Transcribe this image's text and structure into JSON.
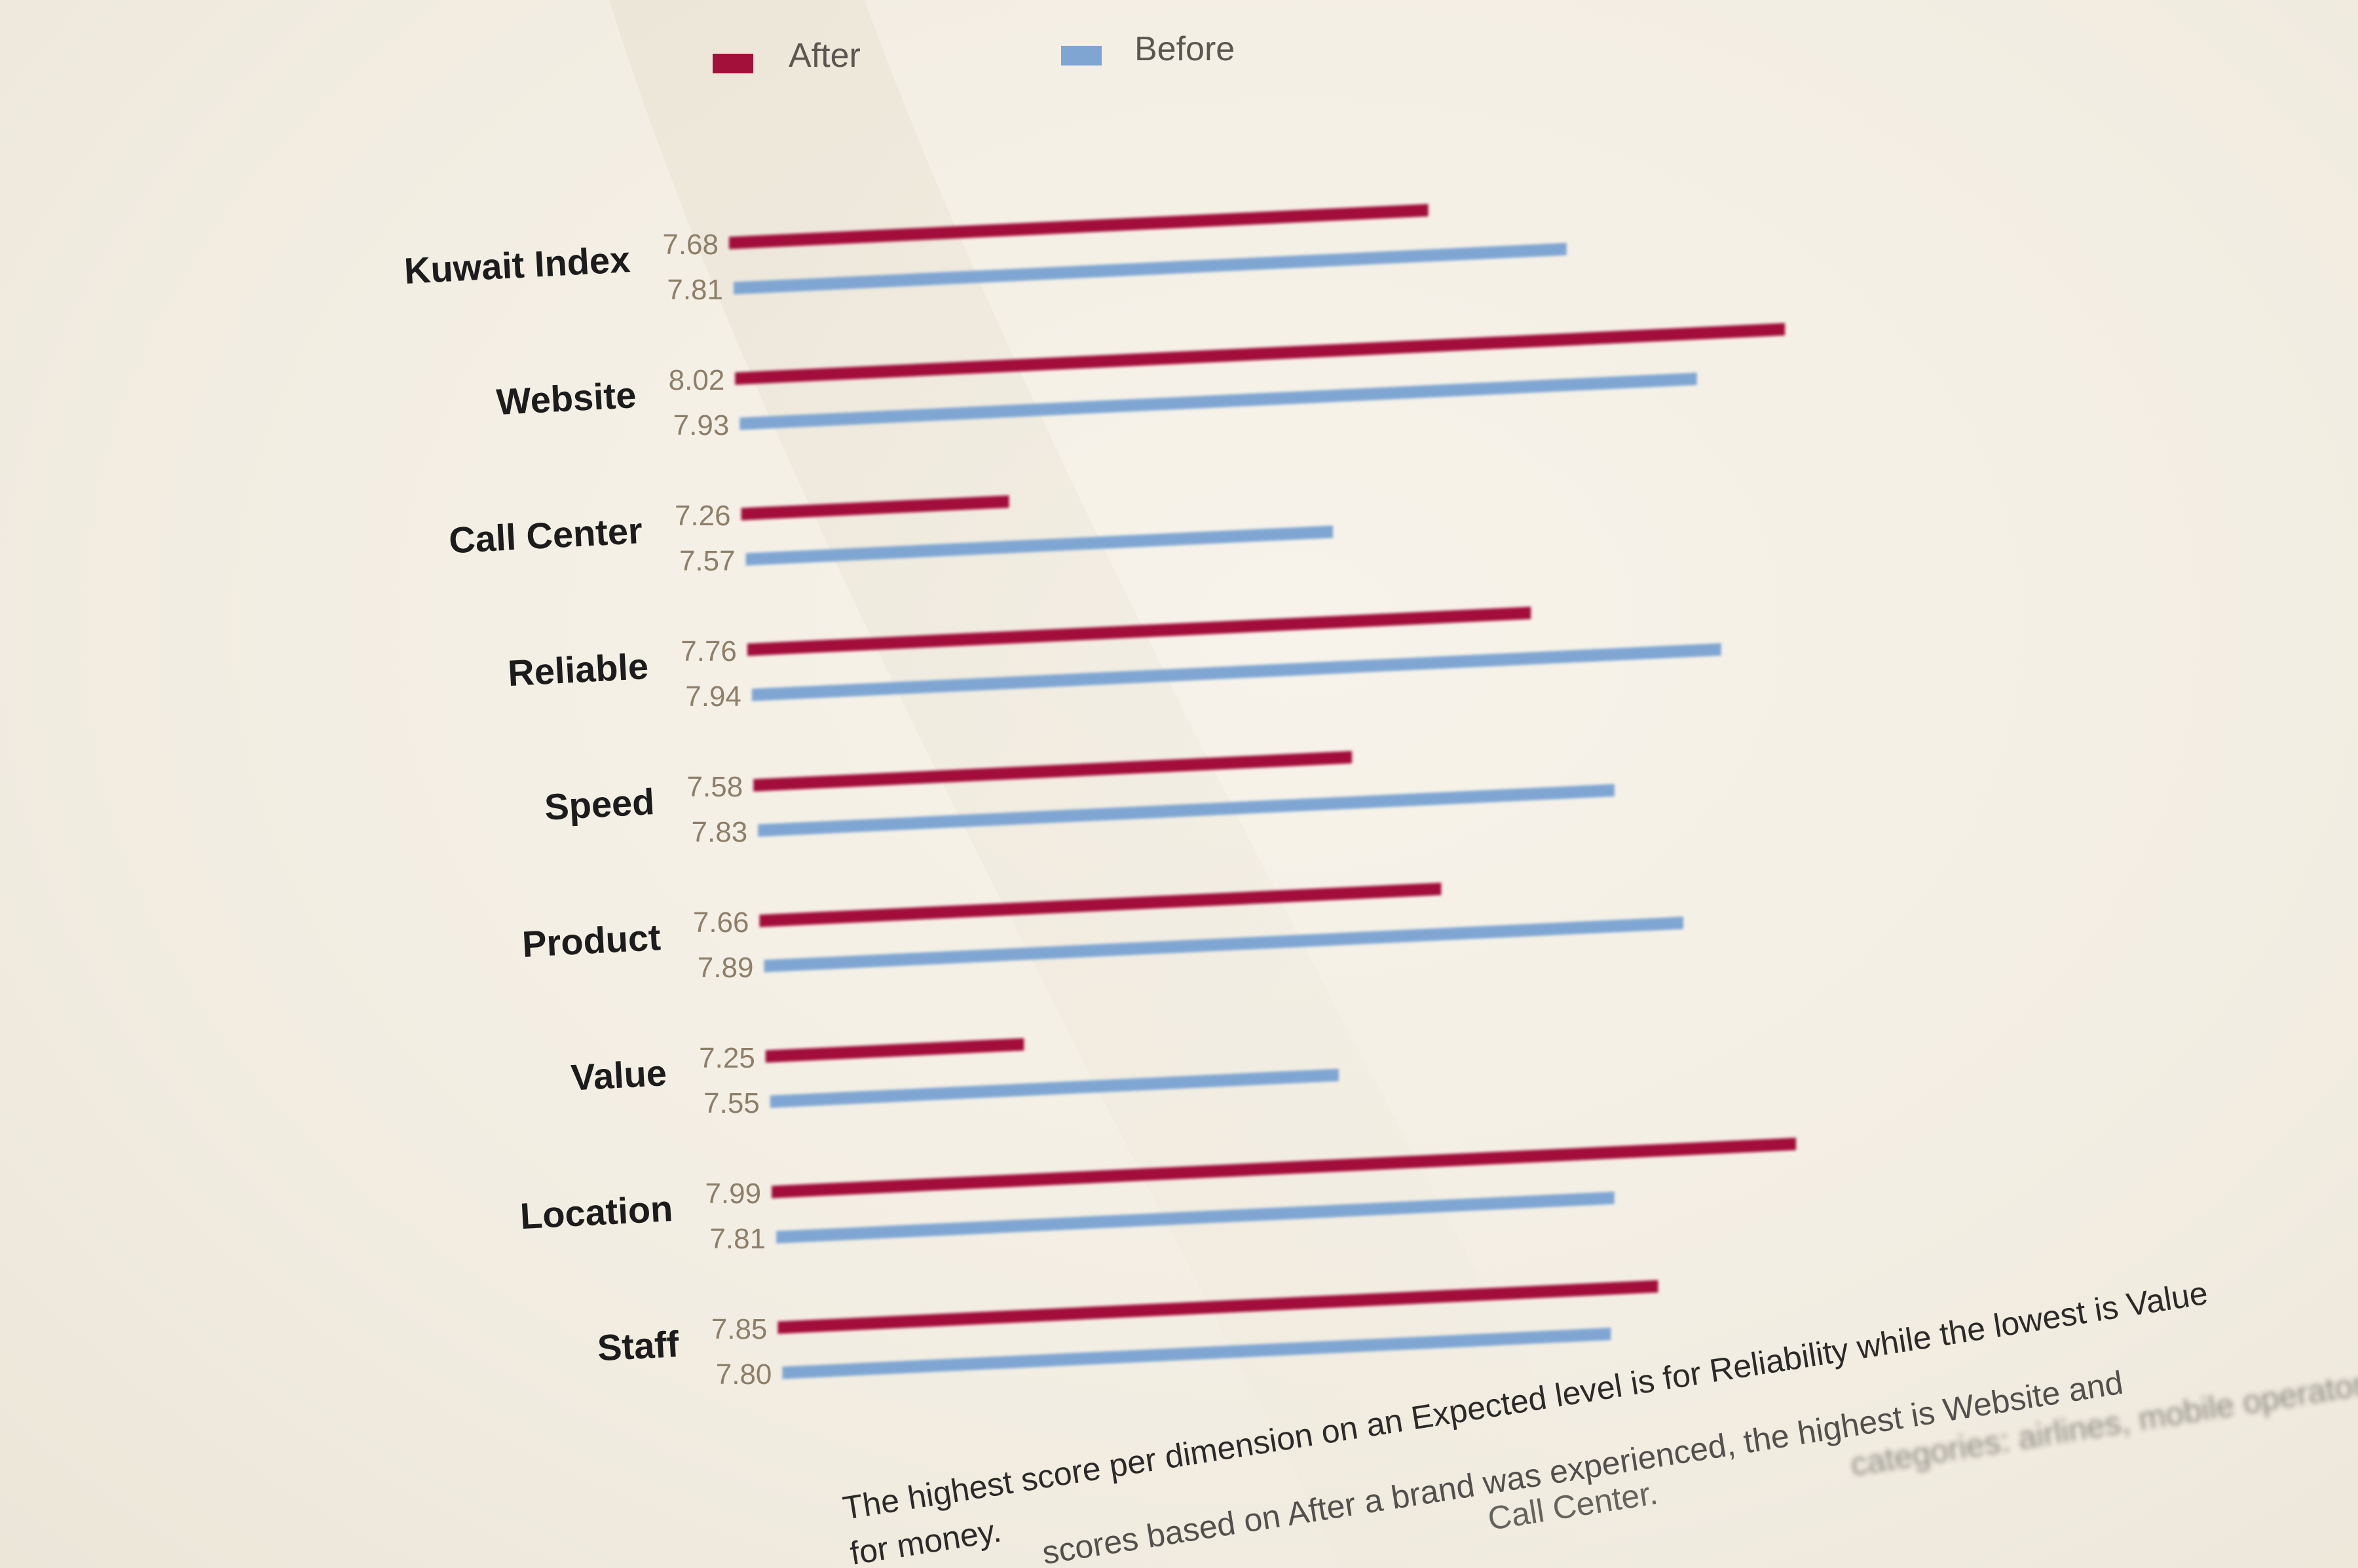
{
  "chart_data": {
    "type": "bar",
    "orientation": "horizontal",
    "categories": [
      "Kuwait Index",
      "Website",
      "Call Center",
      "Reliable",
      "Speed",
      "Product",
      "Value",
      "Location",
      "Staff"
    ],
    "series": [
      {
        "name": "After",
        "color": "#a3113a",
        "values": [
          7.68,
          8.02,
          7.26,
          7.76,
          7.58,
          7.66,
          7.25,
          7.99,
          7.85
        ]
      },
      {
        "name": "Before",
        "color": "#7fa6d3",
        "values": [
          7.81,
          7.93,
          7.57,
          7.94,
          7.83,
          7.89,
          7.55,
          7.81,
          7.8
        ]
      }
    ],
    "value_labels": {
      "After": [
        "7.68",
        "8.02",
        "7.26",
        "7.76",
        "7.58",
        "7.66",
        "7.25",
        "7.99",
        "7.85"
      ],
      "Before": [
        "7.81",
        "7.93",
        "7.57",
        "7.94",
        "7.83",
        "7.89",
        "7.55",
        "7.81",
        "7.80"
      ]
    },
    "legend": "top",
    "grid": false
  },
  "caption": {
    "line1": "The highest score per dimension on an Expected level is for Reliability while the lowest is Value",
    "line2": "for money.",
    "line3": "scores based on After a brand was experienced, the highest is Website and",
    "line4": "Call Center.",
    "line5": "categories: airlines, mobile operators,"
  }
}
